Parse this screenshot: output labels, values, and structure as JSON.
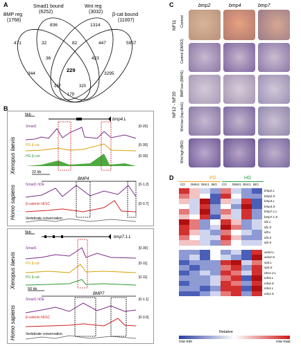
{
  "panelA": {
    "letter": "A",
    "sets": [
      {
        "name": "BMP reg",
        "count": "(1768)"
      },
      {
        "name": "Smad1 bound",
        "count": "(6252)"
      },
      {
        "name": "Wnt reg",
        "count": "(3032)"
      },
      {
        "name": "β-cat bound",
        "count": "(11007)"
      }
    ],
    "regions": [
      "836",
      "1314",
      "471",
      "32",
      "82",
      "447",
      "5957",
      "36",
      "423",
      "344",
      "229",
      "3295",
      "167",
      "320",
      "179"
    ]
  },
  "panelB": {
    "letter": "B",
    "top": {
      "scale1": "5kb",
      "gene1": "bmp4.L",
      "tracks_xl": [
        "Smad1",
        "PG β-cat",
        "HG β-cat"
      ],
      "ranges_xl": [
        "[0-20]",
        "[0-30]",
        "[0-30]"
      ],
      "scale2": "22 kb",
      "gene2": "BMP4",
      "tracks_hs": [
        "Smad1 hDE",
        "β-catenin hESC"
      ],
      "ranges_hs": [
        "[0-1.2]",
        "[0-3.7]"
      ],
      "cons": "Vertebrate conservation"
    },
    "bottom": {
      "scale1": "5kb",
      "gene1": "bmp7.1.L",
      "tracks_xl": [
        "Smad1",
        "PG β-cat",
        "PG β-cat"
      ],
      "ranges_xl": [
        "[0-30]",
        "[0-11]",
        "[0-11]"
      ],
      "scale2": "50 kb",
      "gene2": "BMP7",
      "tracks_hs": [
        "Smad1 hDE",
        "β-catenin hESC"
      ],
      "ranges_hs": [
        "[0-1.1]",
        "[0-3.0]"
      ],
      "cons": "Vertebrate conservation"
    },
    "species_xl": "Xenopus laevis",
    "species_hs": "Homo sapiens"
  },
  "panelC": {
    "letter": "C",
    "columns": [
      "bmp2",
      "bmp4",
      "bmp7"
    ],
    "rows": [
      "Control",
      "Control (DMSO)",
      "BMP low (DMH1)",
      "Wnt low (hsp:dkk1)",
      "Wnt high (BIO)"
    ],
    "stage1": "NF11",
    "stage2": "NF12 - NF20"
  },
  "panelD": {
    "letter": "D",
    "groups": [
      "PG",
      "HG"
    ],
    "group_colors": [
      "#e8a320",
      "#2aa04a"
    ],
    "columns": [
      "CO",
      "DMH1",
      "DKK1",
      "BIO",
      "CO",
      "DMH1",
      "DKK1",
      "BIO"
    ],
    "genes_top": [
      "bmp2.L",
      "bmp2.S",
      "bmp4.L",
      "bmp4.S",
      "bmp7.1.L",
      "bmp7.1.S",
      "id1.L",
      "id1.S",
      "id3.L",
      "id3.S",
      "id2.S"
    ],
    "genes_bottom": [
      "axin2.L",
      "axin2.S",
      "sp5.L",
      "sp5.S",
      "nkx1-2.L",
      "cdx4.L",
      "cdx4.S",
      "cdx1.L",
      "cdx1.S"
    ],
    "scale_title": "Relative",
    "scale_min": "row min",
    "scale_max": "row max"
  }
}
